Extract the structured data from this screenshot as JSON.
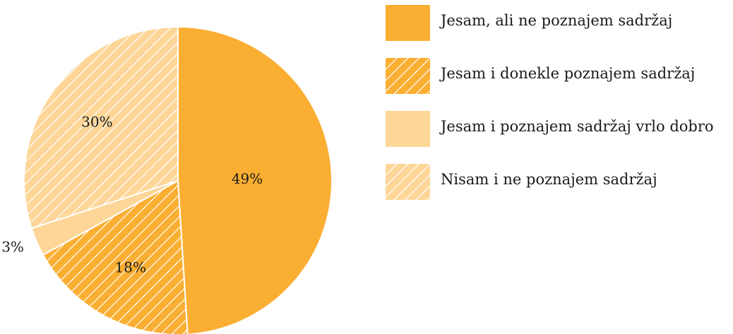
{
  "chart_data": {
    "type": "pie",
    "slices": [
      {
        "label": "Jesam, ali ne poznajem sadržaj",
        "value": 49,
        "value_label": "49%",
        "color": "#FAAE32",
        "pattern": "solid"
      },
      {
        "label": "Jesam i donekle poznajem sadržaj",
        "value": 18,
        "value_label": "18%",
        "color": "#FAAE32",
        "pattern": "hatched"
      },
      {
        "label": "Jesam i poznajem sadržaj vrlo dobro",
        "value": 3,
        "value_label": "3%",
        "color": "#FDD698",
        "pattern": "solid"
      },
      {
        "label": "Nisam i ne poznajem sadržaj",
        "value": 30,
        "value_label": "30%",
        "color": "#FDD698",
        "pattern": "hatched"
      }
    ],
    "start_angle": "top",
    "direction": "clockwise",
    "legend_position": "top-right"
  }
}
